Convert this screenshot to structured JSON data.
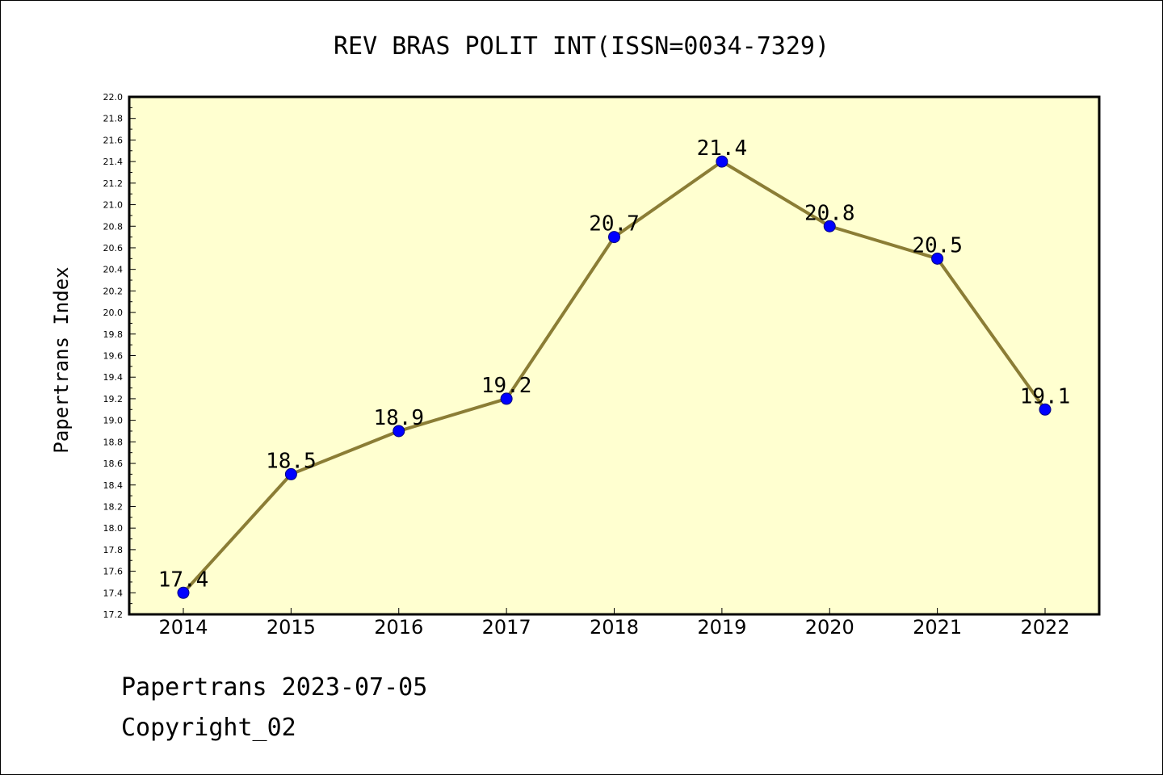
{
  "chart_data": {
    "type": "line",
    "title": "REV BRAS POLIT INT(ISSN=0034-7329)",
    "xlabel": "",
    "ylabel": "Papertrans Index",
    "categories": [
      "2014",
      "2015",
      "2016",
      "2017",
      "2018",
      "2019",
      "2020",
      "2021",
      "2022"
    ],
    "series": [
      {
        "values": [
          17.4,
          18.5,
          18.9,
          19.2,
          20.7,
          21.4,
          20.8,
          20.5,
          19.1
        ],
        "labels": [
          "17.4",
          "18.5",
          "18.9",
          "19.2",
          "20.7",
          "21.4",
          "20.8",
          "20.5",
          "19.1"
        ]
      }
    ],
    "ylim": [
      17.2,
      22.0
    ],
    "yticks": [
      "17.2",
      "17.4",
      "17.6",
      "17.8",
      "18.0",
      "18.2",
      "18.4",
      "18.6",
      "18.8",
      "19.0",
      "19.2",
      "19.4",
      "19.6",
      "19.8",
      "20.0",
      "20.2",
      "20.4",
      "20.6",
      "20.8",
      "21.0",
      "21.2",
      "21.4",
      "21.6",
      "21.8",
      "22.0"
    ],
    "grid": false,
    "legend": "none",
    "colors": {
      "plot_background": "#ffffd0",
      "line": "#8b7d35",
      "marker_fill": "#0000ff",
      "marker_stroke": "#000080",
      "axis": "#000000"
    }
  },
  "footer": {
    "line1": "Papertrans 2023-07-05",
    "line2": "Copyright_02"
  }
}
